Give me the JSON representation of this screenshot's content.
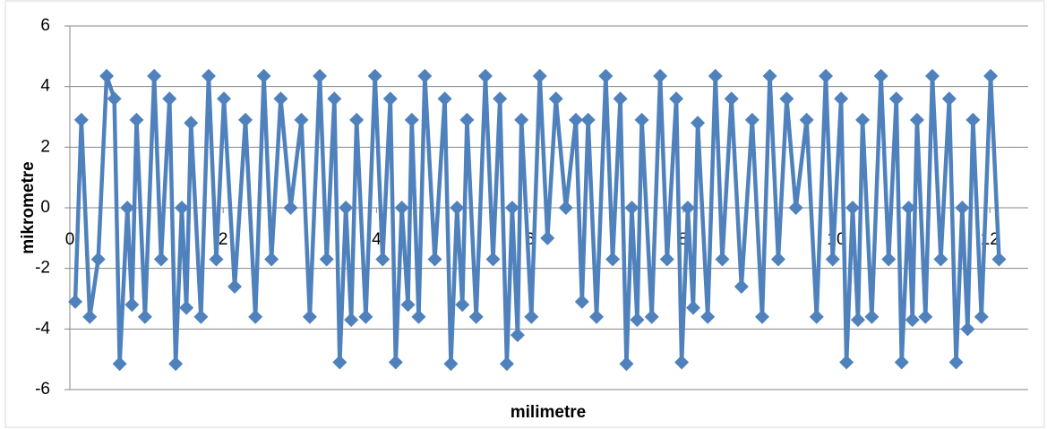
{
  "chart_data": {
    "type": "line",
    "x_label": "milimetre",
    "y_label": "mikrometre",
    "xlim": [
      0,
      12.5
    ],
    "xticks": [
      0,
      2,
      4,
      6,
      8,
      10,
      12
    ],
    "ylim": [
      -6,
      6
    ],
    "yticks": [
      -6,
      -4,
      -2,
      0,
      2,
      4,
      6
    ],
    "grid": true,
    "series": [
      {
        "color": "#4f81bd",
        "x": [
          0.07,
          0.15,
          0.26,
          0.37,
          0.48,
          0.58,
          0.65,
          0.75,
          0.81,
          0.87,
          0.98,
          1.1,
          1.19,
          1.3,
          1.38,
          1.46,
          1.52,
          1.58,
          1.71,
          1.81,
          1.91,
          2.01,
          2.15,
          2.29,
          2.42,
          2.53,
          2.63,
          2.75,
          2.88,
          3.02,
          3.13,
          3.26,
          3.35,
          3.45,
          3.52,
          3.6,
          3.67,
          3.74,
          3.86,
          3.98,
          4.08,
          4.18,
          4.25,
          4.33,
          4.41,
          4.46,
          4.55,
          4.63,
          4.76,
          4.89,
          4.97,
          5.05,
          5.12,
          5.18,
          5.3,
          5.42,
          5.52,
          5.61,
          5.7,
          5.77,
          5.84,
          5.89,
          6.02,
          6.13,
          6.23,
          6.34,
          6.47,
          6.6,
          6.68,
          6.76,
          6.87,
          6.99,
          7.08,
          7.18,
          7.26,
          7.33,
          7.4,
          7.46,
          7.59,
          7.7,
          7.79,
          7.91,
          7.98,
          8.06,
          8.13,
          8.19,
          8.32,
          8.42,
          8.51,
          8.63,
          8.76,
          8.9,
          9.03,
          9.13,
          9.24,
          9.35,
          9.47,
          9.61,
          9.74,
          9.86,
          9.95,
          10.06,
          10.13,
          10.21,
          10.28,
          10.34,
          10.46,
          10.58,
          10.68,
          10.78,
          10.85,
          10.94,
          10.99,
          11.05,
          11.16,
          11.25,
          11.36,
          11.47,
          11.56,
          11.64,
          11.71,
          11.78,
          11.89,
          12.01,
          12.12
        ],
        "values": [
          -3.1,
          2.9,
          -3.6,
          -1.7,
          4.35,
          3.6,
          -5.15,
          0,
          -3.2,
          2.9,
          -3.6,
          4.35,
          -1.7,
          3.6,
          -5.15,
          0,
          -3.3,
          2.8,
          -3.6,
          4.35,
          -1.7,
          3.6,
          -2.6,
          2.9,
          -3.6,
          4.35,
          -1.7,
          3.6,
          0,
          2.9,
          -3.6,
          4.35,
          -1.7,
          3.6,
          -5.1,
          0,
          -3.7,
          2.9,
          -3.6,
          4.35,
          -1.7,
          3.6,
          -5.1,
          0,
          -3.2,
          2.9,
          -3.6,
          4.35,
          -1.7,
          3.6,
          -5.15,
          0,
          -3.2,
          2.9,
          -3.6,
          4.35,
          -1.7,
          3.6,
          -5.15,
          0,
          -4.2,
          2.9,
          -3.6,
          4.35,
          -1.0,
          3.6,
          0,
          2.9,
          -3.1,
          2.9,
          -3.6,
          4.35,
          -1.7,
          3.6,
          -5.15,
          0,
          -3.7,
          2.9,
          -3.6,
          4.35,
          -1.7,
          3.6,
          -5.1,
          0,
          -3.3,
          2.8,
          -3.6,
          4.35,
          -1.7,
          3.6,
          -2.6,
          2.9,
          -3.6,
          4.35,
          -1.7,
          3.6,
          0,
          2.9,
          -3.6,
          4.35,
          -1.7,
          3.6,
          -5.1,
          0,
          -3.7,
          2.9,
          -3.6,
          4.35,
          -1.7,
          3.6,
          -5.1,
          0,
          -3.7,
          2.9,
          -3.6,
          4.35,
          -1.7,
          3.6,
          -5.1,
          0,
          -4.0,
          2.9,
          -3.6,
          4.35,
          -1.7
        ]
      }
    ]
  }
}
